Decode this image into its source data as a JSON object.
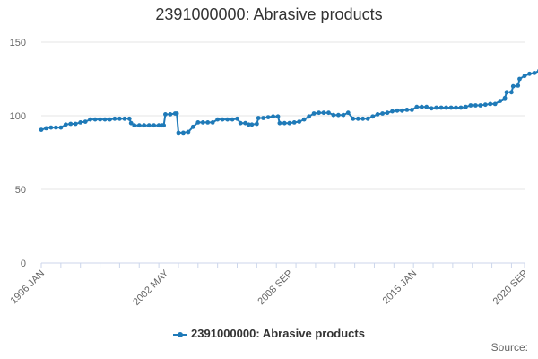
{
  "chart_data": {
    "type": "line",
    "title": "2391000000: Abrasive products",
    "xlabel": "",
    "ylabel": "",
    "ylim": [
      0,
      150
    ],
    "yticks": [
      0,
      50,
      100,
      150
    ],
    "xlim": [
      "1996-01",
      "2020-09"
    ],
    "xtick_labels": [
      {
        "date": "1996-01",
        "label": "1996 JAN"
      },
      {
        "date": "2002-05",
        "label": "2002 MAY"
      },
      {
        "date": "2008-09",
        "label": "2008 SEP"
      },
      {
        "date": "2015-01",
        "label": "2015 JAN"
      },
      {
        "date": "2020-09",
        "label": "2020 SEP"
      }
    ],
    "grid": "horizontal",
    "legend_position": "bottom-center",
    "series": [
      {
        "name": "2391000000: Abrasive products",
        "color": "#1f7ab8",
        "points": [
          [
            "1996-01",
            90.5
          ],
          [
            "1996-04",
            91.5
          ],
          [
            "1996-07",
            92
          ],
          [
            "1996-10",
            92
          ],
          [
            "1997-01",
            92
          ],
          [
            "1997-04",
            94
          ],
          [
            "1997-07",
            94.5
          ],
          [
            "1997-10",
            94.5
          ],
          [
            "1998-01",
            95.5
          ],
          [
            "1998-04",
            96
          ],
          [
            "1998-07",
            97.5
          ],
          [
            "1998-10",
            97.5
          ],
          [
            "1999-01",
            97.5
          ],
          [
            "1999-04",
            97.5
          ],
          [
            "1999-07",
            97.5
          ],
          [
            "1999-10",
            98
          ],
          [
            "2000-01",
            98
          ],
          [
            "2000-04",
            98
          ],
          [
            "2000-07",
            98
          ],
          [
            "2000-08",
            95
          ],
          [
            "2000-10",
            93.5
          ],
          [
            "2001-01",
            93.5
          ],
          [
            "2001-04",
            93.5
          ],
          [
            "2001-07",
            93.5
          ],
          [
            "2001-10",
            93.5
          ],
          [
            "2002-01",
            93.5
          ],
          [
            "2002-03",
            93.5
          ],
          [
            "2002-04",
            93.5
          ],
          [
            "2002-05",
            101
          ],
          [
            "2002-08",
            101
          ],
          [
            "2002-11",
            101.5
          ],
          [
            "2002-12",
            101.5
          ],
          [
            "2003-01",
            88.5
          ],
          [
            "2003-04",
            88.5
          ],
          [
            "2003-07",
            89
          ],
          [
            "2003-10",
            92.5
          ],
          [
            "2004-01",
            95.5
          ],
          [
            "2004-04",
            95.5
          ],
          [
            "2004-07",
            95.5
          ],
          [
            "2004-10",
            95.5
          ],
          [
            "2005-01",
            97.5
          ],
          [
            "2005-04",
            97.5
          ],
          [
            "2005-07",
            97.5
          ],
          [
            "2005-10",
            97.5
          ],
          [
            "2006-01",
            98
          ],
          [
            "2006-03",
            95
          ],
          [
            "2006-06",
            95
          ],
          [
            "2006-08",
            94
          ],
          [
            "2006-10",
            94
          ],
          [
            "2007-01",
            94.5
          ],
          [
            "2007-02",
            98.5
          ],
          [
            "2007-05",
            98.5
          ],
          [
            "2007-08",
            99
          ],
          [
            "2007-11",
            99.5
          ],
          [
            "2008-02",
            99.5
          ],
          [
            "2008-03",
            95
          ],
          [
            "2008-06",
            95
          ],
          [
            "2008-09",
            95
          ],
          [
            "2008-12",
            95.5
          ],
          [
            "2009-03",
            96
          ],
          [
            "2009-06",
            97.5
          ],
          [
            "2009-09",
            99.5
          ],
          [
            "2009-12",
            101.5
          ],
          [
            "2010-03",
            102
          ],
          [
            "2010-06",
            102
          ],
          [
            "2010-09",
            102
          ],
          [
            "2010-12",
            100.5
          ],
          [
            "2011-03",
            100.5
          ],
          [
            "2011-06",
            100.5
          ],
          [
            "2011-09",
            102
          ],
          [
            "2011-12",
            98
          ],
          [
            "2012-03",
            98
          ],
          [
            "2012-06",
            98
          ],
          [
            "2012-09",
            98
          ],
          [
            "2012-12",
            99.5
          ],
          [
            "2013-03",
            101
          ],
          [
            "2013-06",
            101.5
          ],
          [
            "2013-09",
            102
          ],
          [
            "2013-12",
            103
          ],
          [
            "2014-03",
            103.5
          ],
          [
            "2014-06",
            103.5
          ],
          [
            "2014-09",
            104
          ],
          [
            "2014-12",
            104
          ],
          [
            "2015-03",
            106
          ],
          [
            "2015-06",
            106
          ],
          [
            "2015-09",
            106
          ],
          [
            "2015-12",
            105
          ],
          [
            "2016-03",
            105.5
          ],
          [
            "2016-06",
            105.5
          ],
          [
            "2016-09",
            105.5
          ],
          [
            "2016-12",
            105.5
          ],
          [
            "2017-03",
            105.5
          ],
          [
            "2017-06",
            105.5
          ],
          [
            "2017-09",
            106
          ],
          [
            "2017-12",
            107
          ],
          [
            "2018-03",
            107
          ],
          [
            "2018-06",
            107
          ],
          [
            "2018-09",
            107.5
          ],
          [
            "2018-12",
            108
          ],
          [
            "2019-03",
            108
          ],
          [
            "2019-06",
            110
          ],
          [
            "2019-09",
            112
          ],
          [
            "2019-10",
            116
          ],
          [
            "2020-01",
            116
          ],
          [
            "2020-02",
            120
          ],
          [
            "2020-05",
            120.5
          ],
          [
            "2020-06",
            125
          ],
          [
            "2020-09",
            127
          ],
          [
            "2020-12",
            128.5
          ],
          [
            "2021-03",
            129
          ],
          [
            "2021-06",
            130.5
          ],
          [
            "2021-09",
            130.5
          ],
          [
            "2021-12",
            130
          ]
        ]
      }
    ]
  },
  "legend": {
    "label": "2391000000: Abrasive products"
  },
  "credits": {
    "text": "Source:"
  }
}
